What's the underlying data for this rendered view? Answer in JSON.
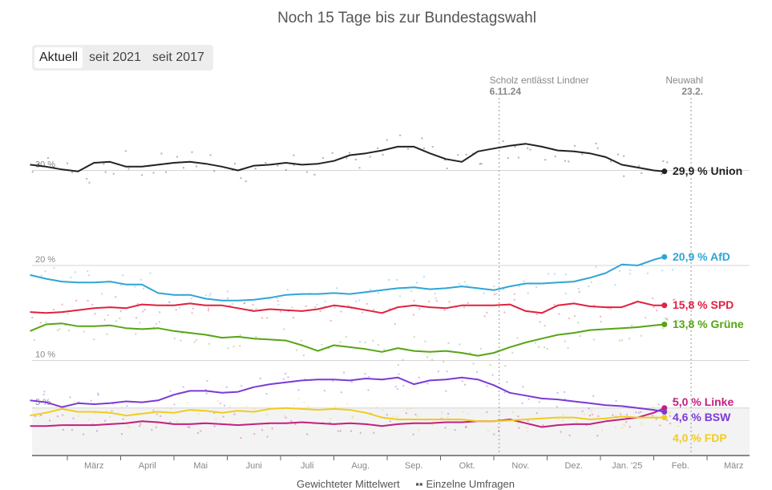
{
  "header": {
    "title": "Noch 15 Tage bis zur Bundestagswahl"
  },
  "tabs": [
    {
      "label": "Aktuell",
      "active": true
    },
    {
      "label": "seit 2021",
      "active": false
    },
    {
      "label": "seit 2017",
      "active": false
    }
  ],
  "legend": {
    "mean_label": "Gewichteter Mittelwert",
    "polls_label": "Einzelne Umfragen"
  },
  "chart_data": {
    "type": "line",
    "title": "Noch 15 Tage bis zur Bundestagswahl",
    "xlabel": "",
    "ylabel": "%",
    "ylim": [
      0,
      35
    ],
    "yticks": [
      {
        "value": 5,
        "label": "5 %"
      },
      {
        "value": 10,
        "label": "10 %"
      },
      {
        "value": 20,
        "label": "20 %"
      },
      {
        "value": 30,
        "label": "30 %"
      }
    ],
    "threshold": {
      "value": 5,
      "shaded_below": true
    },
    "xticks": [
      "März",
      "April",
      "Mai",
      "Juni",
      "Juli",
      "Aug.",
      "Sep.",
      "Okt.",
      "Nov.",
      "Dez.",
      "Jan. '25",
      "Feb.",
      "März"
    ],
    "x_start_month_index": -0.7,
    "annotations": [
      {
        "label": "Scholz entlässt Lindner",
        "date_label": "6.11.24",
        "month_pos": 8.1
      },
      {
        "label": "Neuwahl",
        "date_label": "23.2.",
        "month_pos": 11.7
      }
    ],
    "series": [
      {
        "name": "Union",
        "color": "#222222",
        "final": "29,9 % Union",
        "x": [
          -0.7,
          -0.4,
          -0.1,
          0.2,
          0.5,
          0.8,
          1.1,
          1.4,
          1.7,
          2.0,
          2.3,
          2.6,
          2.9,
          3.2,
          3.5,
          3.8,
          4.1,
          4.4,
          4.7,
          5.0,
          5.3,
          5.6,
          5.9,
          6.2,
          6.5,
          6.8,
          7.1,
          7.4,
          7.7,
          8.0,
          8.3,
          8.6,
          8.9,
          9.2,
          9.5,
          9.8,
          10.1,
          10.4,
          10.7,
          11.0,
          11.2
        ],
        "values": [
          30.6,
          30.4,
          30.1,
          29.9,
          30.8,
          30.9,
          30.4,
          30.4,
          30.6,
          30.8,
          30.9,
          30.7,
          30.4,
          30.0,
          30.5,
          30.6,
          30.8,
          30.6,
          30.7,
          31.0,
          31.6,
          31.8,
          32.1,
          32.5,
          32.5,
          31.8,
          31.2,
          30.9,
          32.0,
          32.3,
          32.6,
          32.8,
          32.5,
          32.1,
          32.0,
          31.8,
          31.4,
          30.6,
          30.3,
          30.0,
          29.9
        ]
      },
      {
        "name": "AfD",
        "color": "#2fa5d6",
        "final": "20,9 % AfD",
        "x": [
          -0.7,
          -0.4,
          -0.1,
          0.2,
          0.5,
          0.8,
          1.1,
          1.4,
          1.7,
          2.0,
          2.3,
          2.6,
          2.9,
          3.2,
          3.5,
          3.8,
          4.1,
          4.4,
          4.7,
          5.0,
          5.3,
          5.6,
          5.9,
          6.2,
          6.5,
          6.8,
          7.1,
          7.4,
          7.7,
          8.0,
          8.3,
          8.6,
          8.9,
          9.2,
          9.5,
          9.8,
          10.1,
          10.4,
          10.7,
          11.0,
          11.2
        ],
        "values": [
          19.0,
          18.6,
          18.3,
          18.2,
          18.2,
          18.3,
          18.0,
          18.0,
          17.1,
          16.9,
          16.9,
          16.5,
          16.3,
          16.3,
          16.4,
          16.6,
          16.9,
          17.0,
          17.0,
          17.1,
          17.0,
          17.2,
          17.4,
          17.6,
          17.7,
          17.5,
          17.6,
          17.8,
          17.6,
          17.4,
          17.8,
          18.1,
          18.1,
          18.2,
          18.3,
          18.7,
          19.2,
          20.1,
          20.0,
          20.6,
          20.9
        ]
      },
      {
        "name": "SPD",
        "color": "#e0213f",
        "final": "15,8 % SPD",
        "x": [
          -0.7,
          -0.4,
          -0.1,
          0.2,
          0.5,
          0.8,
          1.1,
          1.4,
          1.7,
          2.0,
          2.3,
          2.6,
          2.9,
          3.2,
          3.5,
          3.8,
          4.1,
          4.4,
          4.7,
          5.0,
          5.3,
          5.6,
          5.9,
          6.2,
          6.5,
          6.8,
          7.1,
          7.4,
          7.7,
          8.0,
          8.3,
          8.6,
          8.9,
          9.2,
          9.5,
          9.8,
          10.1,
          10.4,
          10.7,
          11.0,
          11.2
        ],
        "values": [
          15.1,
          15.0,
          15.1,
          15.3,
          15.5,
          15.6,
          15.5,
          15.9,
          15.8,
          15.8,
          16.0,
          15.8,
          15.8,
          15.5,
          15.2,
          15.4,
          15.3,
          15.2,
          15.4,
          15.8,
          15.6,
          15.3,
          15.0,
          15.6,
          15.8,
          15.6,
          15.5,
          15.8,
          15.8,
          15.8,
          15.9,
          15.2,
          15.0,
          15.8,
          16.0,
          15.7,
          15.6,
          15.6,
          16.2,
          15.8,
          15.8
        ]
      },
      {
        "name": "Grüne",
        "color": "#56a514",
        "final": "13,8 % Grüne",
        "x": [
          -0.7,
          -0.4,
          -0.1,
          0.2,
          0.5,
          0.8,
          1.1,
          1.4,
          1.7,
          2.0,
          2.3,
          2.6,
          2.9,
          3.2,
          3.5,
          3.8,
          4.1,
          4.4,
          4.7,
          5.0,
          5.3,
          5.6,
          5.9,
          6.2,
          6.5,
          6.8,
          7.1,
          7.4,
          7.7,
          8.0,
          8.3,
          8.6,
          8.9,
          9.2,
          9.5,
          9.8,
          10.1,
          10.4,
          10.7,
          11.0,
          11.2
        ],
        "values": [
          13.1,
          13.8,
          13.9,
          13.6,
          13.6,
          13.7,
          13.4,
          13.3,
          13.4,
          13.1,
          12.9,
          12.7,
          12.4,
          12.5,
          12.3,
          12.2,
          12.1,
          11.6,
          11.0,
          11.6,
          11.4,
          11.2,
          10.9,
          11.3,
          11.0,
          10.9,
          11.0,
          10.8,
          10.5,
          10.8,
          11.4,
          11.9,
          12.3,
          12.7,
          12.9,
          13.2,
          13.3,
          13.4,
          13.5,
          13.7,
          13.8
        ]
      },
      {
        "name": "Linke",
        "color": "#c2207f",
        "final": "5,0 % Linke",
        "x": [
          -0.7,
          -0.4,
          -0.1,
          0.2,
          0.5,
          0.8,
          1.1,
          1.4,
          1.7,
          2.0,
          2.3,
          2.6,
          2.9,
          3.2,
          3.5,
          3.8,
          4.1,
          4.4,
          4.7,
          5.0,
          5.3,
          5.6,
          5.9,
          6.2,
          6.5,
          6.8,
          7.1,
          7.4,
          7.7,
          8.0,
          8.3,
          8.6,
          8.9,
          9.2,
          9.5,
          9.8,
          10.1,
          10.4,
          10.7,
          11.0,
          11.2
        ],
        "values": [
          3.1,
          3.1,
          3.2,
          3.2,
          3.2,
          3.3,
          3.4,
          3.6,
          3.5,
          3.3,
          3.3,
          3.4,
          3.3,
          3.2,
          3.3,
          3.4,
          3.4,
          3.5,
          3.4,
          3.3,
          3.4,
          3.3,
          3.1,
          3.3,
          3.4,
          3.4,
          3.5,
          3.5,
          3.6,
          3.6,
          3.8,
          3.4,
          3.0,
          3.2,
          3.3,
          3.3,
          3.6,
          3.8,
          4.0,
          4.5,
          5.0
        ]
      },
      {
        "name": "BSW",
        "color": "#7b3ad6",
        "final": "4,6 % BSW",
        "x": [
          -0.7,
          -0.4,
          -0.1,
          0.2,
          0.5,
          0.8,
          1.1,
          1.4,
          1.7,
          2.0,
          2.3,
          2.6,
          2.9,
          3.2,
          3.5,
          3.8,
          4.1,
          4.4,
          4.7,
          5.0,
          5.3,
          5.6,
          5.9,
          6.2,
          6.5,
          6.8,
          7.1,
          7.4,
          7.7,
          8.0,
          8.3,
          8.6,
          8.9,
          9.2,
          9.5,
          9.8,
          10.1,
          10.4,
          10.7,
          11.0,
          11.2
        ],
        "values": [
          5.8,
          5.6,
          5.1,
          5.5,
          5.4,
          5.5,
          5.7,
          5.6,
          5.8,
          6.4,
          6.8,
          6.8,
          6.6,
          6.7,
          7.2,
          7.5,
          7.7,
          7.9,
          8.0,
          8.0,
          7.9,
          8.1,
          8.0,
          8.2,
          7.5,
          7.9,
          8.0,
          8.2,
          8.0,
          7.4,
          6.6,
          6.3,
          6.0,
          5.9,
          5.7,
          5.5,
          5.3,
          5.2,
          5.0,
          4.8,
          4.6
        ]
      },
      {
        "name": "FDP",
        "color": "#f0cc20",
        "final": "4,0 % FDP",
        "x": [
          -0.7,
          -0.4,
          -0.1,
          0.2,
          0.5,
          0.8,
          1.1,
          1.4,
          1.7,
          2.0,
          2.3,
          2.6,
          2.9,
          3.2,
          3.5,
          3.8,
          4.1,
          4.4,
          4.7,
          5.0,
          5.3,
          5.6,
          5.9,
          6.2,
          6.5,
          6.8,
          7.1,
          7.4,
          7.7,
          8.0,
          8.3,
          8.6,
          8.9,
          9.2,
          9.5,
          9.8,
          10.1,
          10.4,
          10.7,
          11.0,
          11.2
        ],
        "values": [
          4.2,
          4.5,
          4.9,
          4.6,
          4.6,
          4.5,
          4.2,
          4.4,
          4.6,
          4.5,
          4.8,
          4.7,
          4.5,
          4.7,
          4.6,
          4.9,
          5.0,
          4.9,
          4.8,
          4.9,
          4.8,
          4.5,
          4.0,
          3.8,
          3.8,
          3.8,
          3.8,
          3.8,
          3.6,
          3.6,
          3.7,
          3.8,
          3.9,
          4.0,
          4.0,
          3.8,
          3.9,
          4.1,
          4.0,
          4.0,
          4.0
        ]
      }
    ]
  }
}
